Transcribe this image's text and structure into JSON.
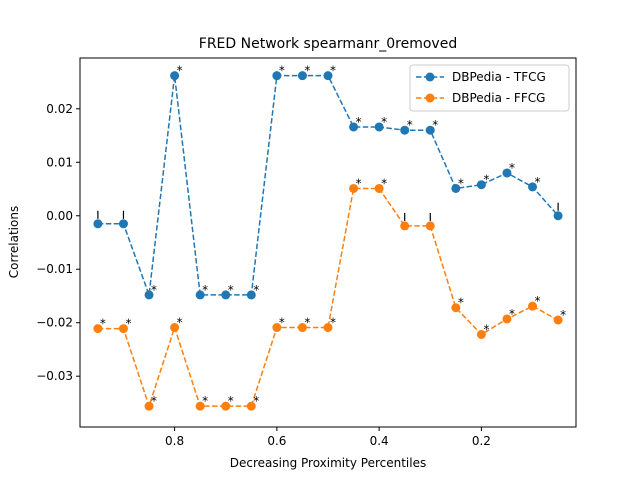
{
  "chart_data": {
    "type": "line",
    "title": "FRED Network spearmanr_0removed",
    "xlabel": "Decreasing Proximity Percentiles",
    "ylabel": "Correlations",
    "x_inverted": true,
    "xlim": [
      0.985,
      0.015
    ],
    "ylim": [
      -0.0395,
      0.0295
    ],
    "xticks": [
      0.8,
      0.6,
      0.4,
      0.2
    ],
    "xtick_labels": [
      "0.8",
      "0.6",
      "0.4",
      "0.2"
    ],
    "yticks": [
      -0.03,
      -0.02,
      -0.01,
      0.0,
      0.01,
      0.02
    ],
    "ytick_labels": [
      "−0.03",
      "−0.02",
      "−0.01",
      "0.00",
      "0.01",
      "0.02"
    ],
    "grid": false,
    "legend_position": "top-right",
    "x": [
      0.95,
      0.9,
      0.85,
      0.8,
      0.75,
      0.7,
      0.65,
      0.6,
      0.55,
      0.5,
      0.45,
      0.4,
      0.35,
      0.3,
      0.25,
      0.2,
      0.15,
      0.1,
      0.05
    ],
    "series": [
      {
        "name": "DBPedia - TFCG",
        "color": "#1f77b4",
        "line_style": "dashed",
        "values": [
          -0.0015,
          -0.0015,
          -0.0148,
          0.0262,
          -0.0148,
          -0.0148,
          -0.0148,
          0.0262,
          0.0262,
          0.0262,
          0.0166,
          0.0166,
          0.016,
          0.016,
          0.0051,
          0.0058,
          0.008,
          0.0054,
          0.0
        ],
        "markers": [
          "|",
          "|",
          "*",
          "*",
          "*",
          "*",
          "*",
          "*",
          "*",
          "*",
          "*",
          "*",
          "*",
          "*",
          "*",
          "*",
          "*",
          "*",
          "|"
        ]
      },
      {
        "name": "DBPedia - FFCG",
        "color": "#ff7f0e",
        "line_style": "dashed",
        "values": [
          -0.0211,
          -0.0211,
          -0.0356,
          -0.0209,
          -0.0356,
          -0.0356,
          -0.0356,
          -0.0209,
          -0.0209,
          -0.0209,
          0.0051,
          0.0051,
          -0.0019,
          -0.0019,
          -0.0172,
          -0.0222,
          -0.0193,
          -0.0169,
          -0.0195
        ],
        "markers": [
          "*",
          "*",
          "*",
          "*",
          "*",
          "*",
          "*",
          "*",
          "*",
          "*",
          "*",
          "*",
          "|",
          "|",
          "*",
          "*",
          "*",
          "*",
          "*"
        ]
      }
    ]
  }
}
